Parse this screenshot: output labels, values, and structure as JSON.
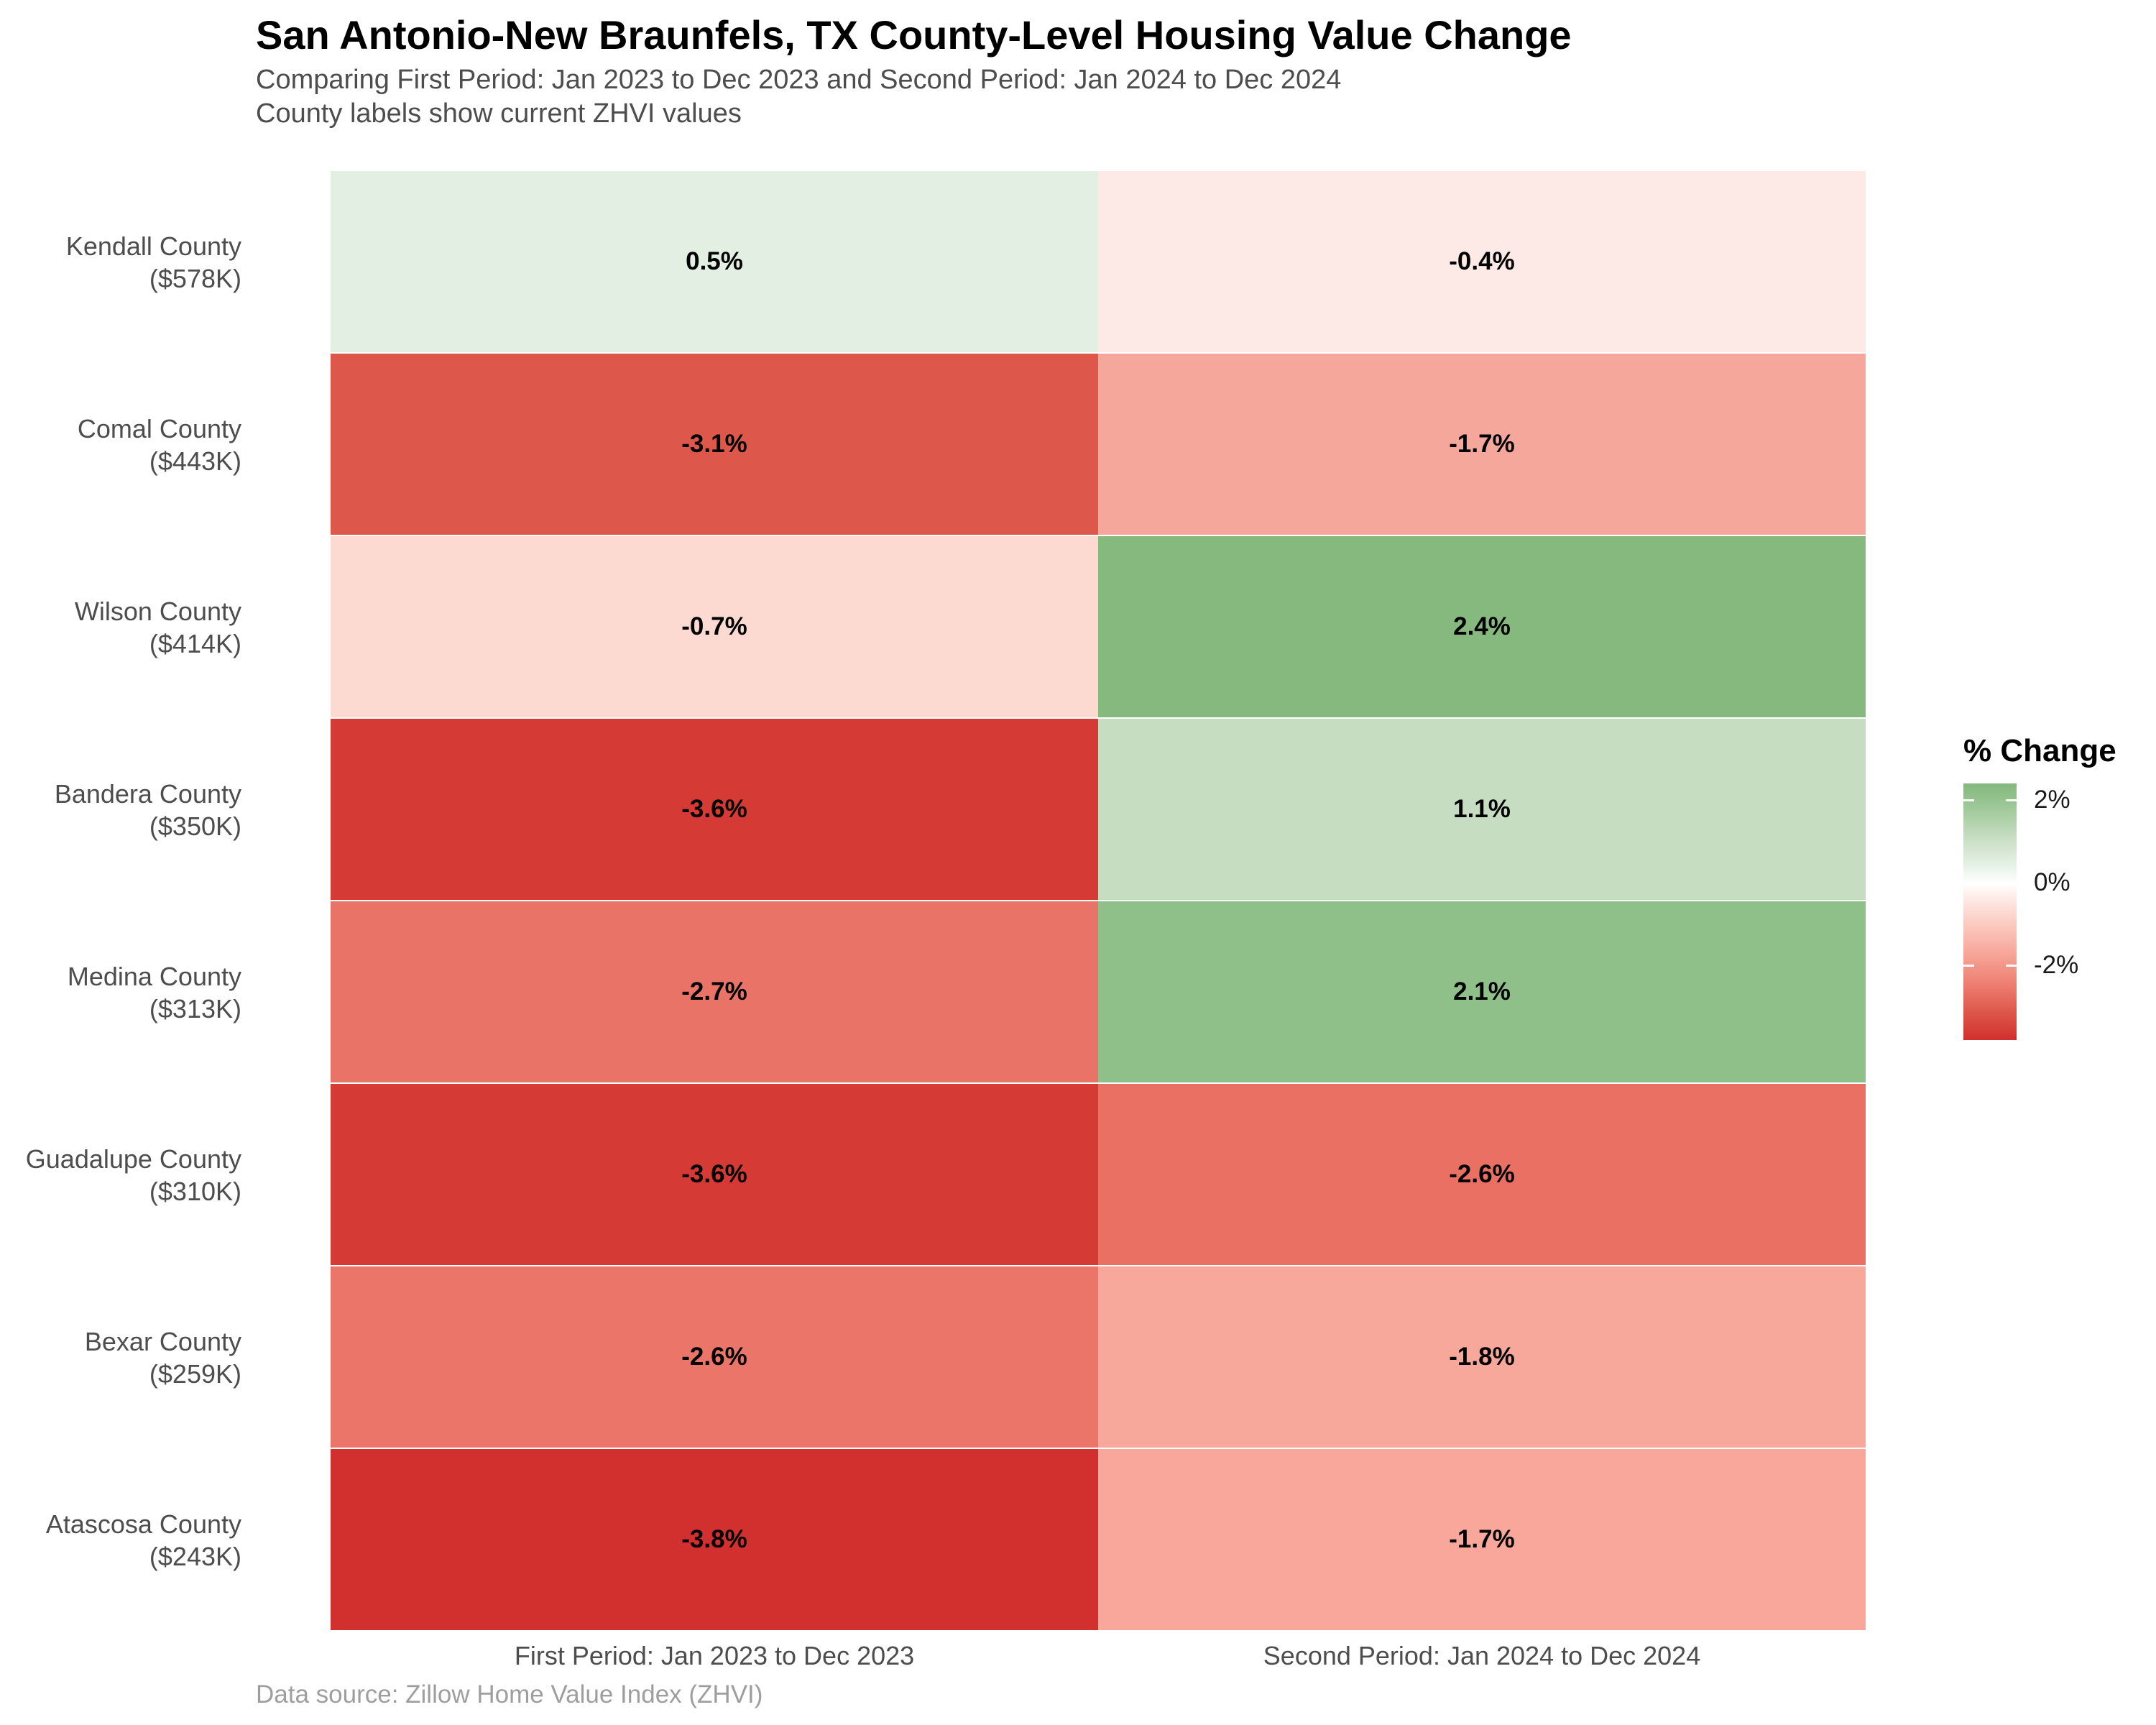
{
  "chart_data": {
    "type": "heatmap",
    "title": "San Antonio-New Braunfels, TX County-Level Housing Value Change",
    "subtitle_line1": "Comparing First Period: Jan 2023 to Dec 2023 and Second Period: Jan 2024 to Dec 2024",
    "subtitle_line2": "County labels show current ZHVI values",
    "caption": "Data source: Zillow Home Value Index (ZHVI)",
    "columns": [
      "First Period: Jan 2023 to Dec 2023",
      "Second Period: Jan 2024 to Dec 2024"
    ],
    "rows": [
      {
        "county": "Kendall County",
        "zhvi": "($578K)",
        "values": [
          0.5,
          -0.4
        ],
        "labels": [
          "0.5%",
          "-0.4%"
        ],
        "colors": [
          "#e3efe3",
          "#fdeae6"
        ]
      },
      {
        "county": "Comal County",
        "zhvi": "($443K)",
        "values": [
          -3.1,
          -1.7
        ],
        "labels": [
          "-3.1%",
          "-1.7%"
        ],
        "colors": [
          "#dd574b",
          "#f6a79b"
        ]
      },
      {
        "county": "Wilson County",
        "zhvi": "($414K)",
        "values": [
          -0.7,
          2.4
        ],
        "labels": [
          "-0.7%",
          "2.4%"
        ],
        "colors": [
          "#fcdad2",
          "#85b97e"
        ]
      },
      {
        "county": "Bandera County",
        "zhvi": "($350K)",
        "values": [
          -3.6,
          1.1
        ],
        "labels": [
          "-3.6%",
          "1.1%"
        ],
        "colors": [
          "#d53a34",
          "#c7ddc2"
        ]
      },
      {
        "county": "Medina County",
        "zhvi": "($313K)",
        "values": [
          -2.7,
          2.1
        ],
        "labels": [
          "-2.7%",
          "2.1%"
        ],
        "colors": [
          "#e87366",
          "#90c08a"
        ]
      },
      {
        "county": "Guadalupe County",
        "zhvi": "($310K)",
        "values": [
          -3.6,
          -2.6
        ],
        "labels": [
          "-3.6%",
          "-2.6%"
        ],
        "colors": [
          "#d53a34",
          "#ea7063"
        ]
      },
      {
        "county": "Bexar County",
        "zhvi": "($259K)",
        "values": [
          -2.6,
          -1.8
        ],
        "labels": [
          "-2.6%",
          "-1.8%"
        ],
        "colors": [
          "#ea7568",
          "#f7a89b"
        ]
      },
      {
        "county": "Atascosa County",
        "zhvi": "($243K)",
        "values": [
          -3.8,
          -1.7
        ],
        "labels": [
          "-3.8%",
          "-1.7%"
        ],
        "colors": [
          "#d22f2f",
          "#f8a79a"
        ]
      }
    ],
    "legend": {
      "title": "% Change",
      "scale_max": 2.4,
      "scale_min": -3.8,
      "ticks": [
        {
          "label": "2%",
          "value": 2
        },
        {
          "label": "0%",
          "value": 0
        },
        {
          "label": "-2%",
          "value": -2
        }
      ],
      "notch_values": [
        2,
        -2
      ],
      "gradient_stops": [
        {
          "pos": 0,
          "color": "#85b97e"
        },
        {
          "pos": 5,
          "color": "#90c08a"
        },
        {
          "pos": 21,
          "color": "#c7ddc2"
        },
        {
          "pos": 31,
          "color": "#e3efe3"
        },
        {
          "pos": 39,
          "color": "#ffffff"
        },
        {
          "pos": 45,
          "color": "#fdeae6"
        },
        {
          "pos": 50,
          "color": "#fcdad2"
        },
        {
          "pos": 66,
          "color": "#f7a79a"
        },
        {
          "pos": 81,
          "color": "#ea7568"
        },
        {
          "pos": 89,
          "color": "#dd574b"
        },
        {
          "pos": 97,
          "color": "#d53a34"
        },
        {
          "pos": 100,
          "color": "#d22f2f"
        }
      ]
    },
    "colors": {
      "background": "#ffffff",
      "title_text": "#000000",
      "subtitle_text": "#4d4d4d",
      "axis_text": "#4d4d4d",
      "caption_text": "#9e9e9e",
      "cell_value_text": "#000000"
    }
  }
}
